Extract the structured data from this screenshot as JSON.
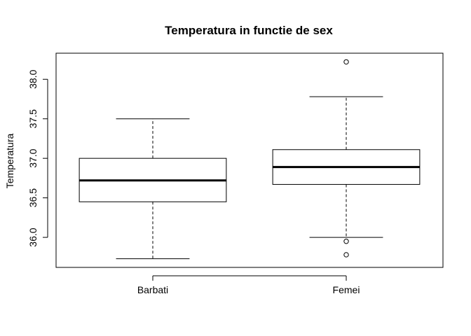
{
  "chart_data": {
    "type": "boxplot",
    "title": "Temperatura in functie de sex",
    "xlabel": "",
    "ylabel": "Temperatura",
    "categories": [
      "Barbati",
      "Femei"
    ],
    "ylim": [
      35.62,
      38.33
    ],
    "yticks": [
      "36.0",
      "36.5",
      "37.0",
      "37.5",
      "38.0"
    ],
    "boxes": [
      {
        "name": "Barbati",
        "whisker_low": 35.73,
        "q1": 36.45,
        "median": 36.72,
        "q3": 37.0,
        "whisker_high": 37.5,
        "outliers": []
      },
      {
        "name": "Femei",
        "whisker_low": 36.0,
        "q1": 36.67,
        "median": 36.89,
        "q3": 37.11,
        "whisker_high": 37.78,
        "outliers": [
          35.95,
          35.78,
          38.22
        ]
      }
    ],
    "grid": false,
    "legend": "none"
  }
}
